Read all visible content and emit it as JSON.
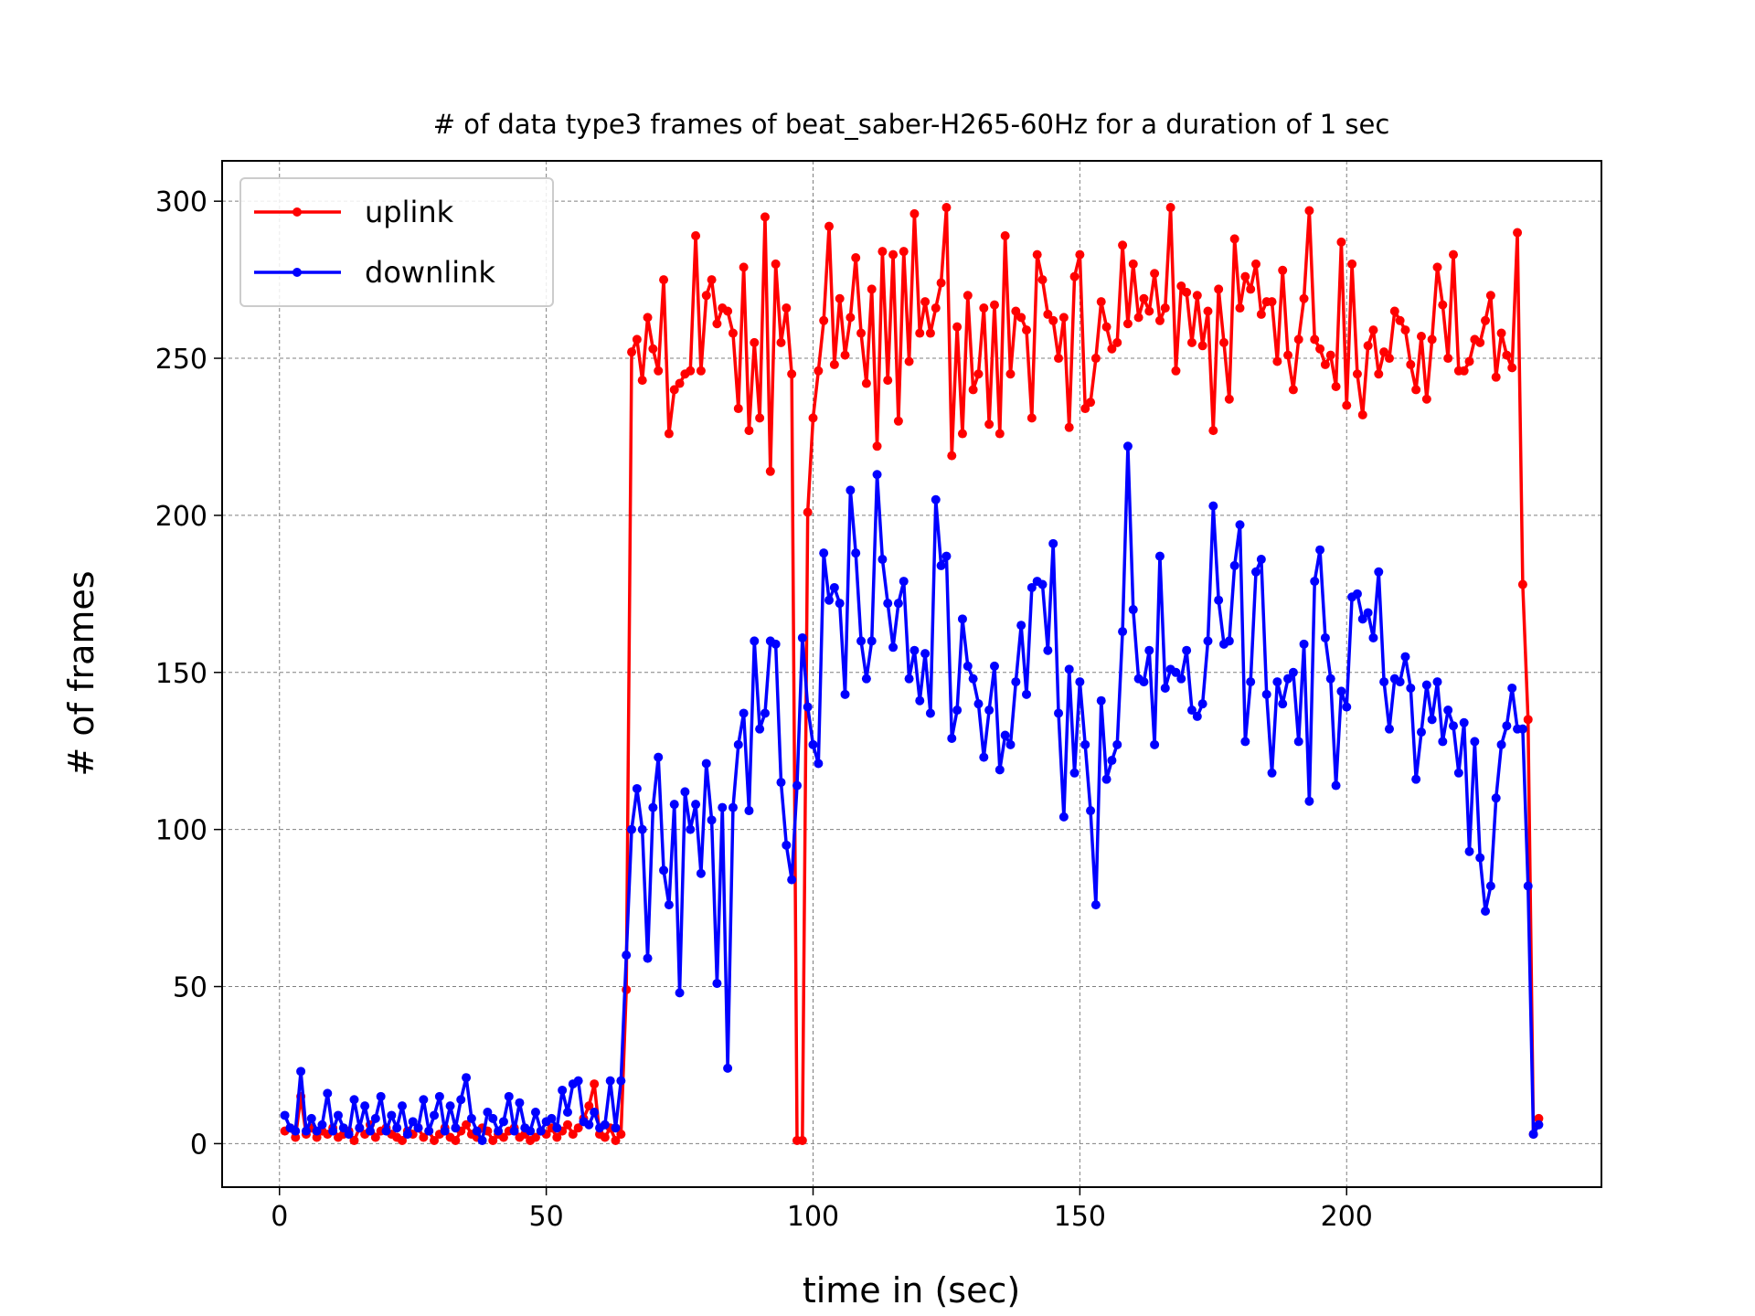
{
  "chart_data": {
    "type": "line",
    "title": "# of data type3 frames of beat_saber-H265-60Hz for a duration of 1 sec",
    "xlabel": "time in (sec)",
    "ylabel": "# of frames",
    "x": [
      1,
      2,
      3,
      4,
      5,
      6,
      7,
      8,
      9,
      10,
      11,
      12,
      13,
      14,
      15,
      16,
      17,
      18,
      19,
      20,
      21,
      22,
      23,
      24,
      25,
      26,
      27,
      28,
      29,
      30,
      31,
      32,
      33,
      34,
      35,
      36,
      37,
      38,
      39,
      40,
      41,
      42,
      43,
      44,
      45,
      46,
      47,
      48,
      49,
      50,
      51,
      52,
      53,
      54,
      55,
      56,
      57,
      58,
      59,
      60,
      61,
      62,
      63,
      64,
      65,
      66,
      67,
      68,
      69,
      70,
      71,
      72,
      73,
      74,
      75,
      76,
      77,
      78,
      79,
      80,
      81,
      82,
      83,
      84,
      85,
      86,
      87,
      88,
      89,
      90,
      91,
      92,
      93,
      94,
      95,
      96,
      97,
      98,
      99,
      100,
      101,
      102,
      103,
      104,
      105,
      106,
      107,
      108,
      109,
      110,
      111,
      112,
      113,
      114,
      115,
      116,
      117,
      118,
      119,
      120,
      121,
      122,
      123,
      124,
      125,
      126,
      127,
      128,
      129,
      130,
      131,
      132,
      133,
      134,
      135,
      136,
      137,
      138,
      139,
      140,
      141,
      142,
      143,
      144,
      145,
      146,
      147,
      148,
      149,
      150,
      151,
      152,
      153,
      154,
      155,
      156,
      157,
      158,
      159,
      160,
      161,
      162,
      163,
      164,
      165,
      166,
      167,
      168,
      169,
      170,
      171,
      172,
      173,
      174,
      175,
      176,
      177,
      178,
      179,
      180,
      181,
      182,
      183,
      184,
      185,
      186,
      187,
      188,
      189,
      190,
      191,
      192,
      193,
      194,
      195,
      196,
      197,
      198,
      199,
      200,
      201,
      202,
      203,
      204,
      205,
      206,
      207,
      208,
      209,
      210,
      211,
      212,
      213,
      214,
      215,
      216,
      217,
      218,
      219,
      220,
      221,
      222,
      223,
      224,
      225,
      226,
      227,
      228,
      229,
      230,
      231,
      232,
      233,
      234,
      235,
      236
    ],
    "series": [
      {
        "name": "uplink",
        "color": "#ff0000",
        "values": [
          4,
          5,
          2,
          15,
          3,
          5,
          2,
          4,
          3,
          5,
          2,
          3,
          4,
          1,
          5,
          3,
          6,
          2,
          4,
          5,
          3,
          2,
          1,
          4,
          3,
          5,
          2,
          4,
          1,
          3,
          5,
          2,
          1,
          4,
          6,
          3,
          2,
          5,
          4,
          1,
          3,
          2,
          4,
          5,
          2,
          3,
          1,
          2,
          4,
          3,
          5,
          2,
          4,
          6,
          3,
          5,
          8,
          12,
          19,
          3,
          2,
          5,
          1,
          3,
          49,
          252,
          256,
          243,
          263,
          253,
          246,
          275,
          226,
          240,
          242,
          245,
          246,
          289,
          246,
          270,
          275,
          261,
          266,
          265,
          258,
          234,
          279,
          227,
          255,
          231,
          295,
          214,
          280,
          255,
          266,
          245,
          1,
          1,
          201,
          231,
          246,
          262,
          292,
          248,
          269,
          251,
          263,
          282,
          258,
          242,
          272,
          222,
          284,
          243,
          283,
          230,
          284,
          249,
          296,
          258,
          268,
          258,
          266,
          274,
          298,
          219,
          260,
          226,
          270,
          240,
          245,
          266,
          229,
          267,
          226,
          289,
          245,
          265,
          263,
          259,
          231,
          283,
          275,
          264,
          262,
          250,
          263,
          228,
          276,
          283,
          234,
          236,
          250,
          268,
          260,
          253,
          255,
          286,
          261,
          280,
          263,
          269,
          265,
          277,
          262,
          266,
          298,
          246,
          273,
          271,
          255,
          270,
          254,
          265,
          227,
          272,
          255,
          237,
          288,
          266,
          276,
          272,
          280,
          264,
          268,
          268,
          249,
          278,
          251,
          240,
          256,
          269,
          297,
          256,
          253,
          248,
          251,
          241,
          287,
          235,
          280,
          245,
          232,
          254,
          259,
          245,
          252,
          250,
          265,
          262,
          259,
          248,
          240,
          257,
          237,
          256,
          279,
          267,
          250,
          283,
          246,
          246,
          249,
          256,
          255,
          262,
          270,
          244,
          258,
          251,
          247,
          290,
          178,
          135,
          3,
          8
        ]
      },
      {
        "name": "downlink",
        "color": "#0000ff",
        "values": [
          9,
          5,
          4,
          23,
          4,
          8,
          4,
          6,
          16,
          4,
          9,
          5,
          3,
          14,
          5,
          12,
          4,
          8,
          15,
          4,
          9,
          5,
          12,
          3,
          7,
          5,
          14,
          4,
          9,
          15,
          4,
          12,
          5,
          14,
          21,
          8,
          4,
          1,
          10,
          8,
          4,
          7,
          15,
          4,
          13,
          5,
          4,
          10,
          4,
          7,
          8,
          5,
          17,
          10,
          19,
          20,
          7,
          6,
          10,
          5,
          6,
          20,
          5,
          20,
          60,
          100,
          113,
          100,
          59,
          107,
          123,
          87,
          76,
          108,
          48,
          112,
          100,
          108,
          86,
          121,
          103,
          51,
          107,
          24,
          107,
          127,
          137,
          106,
          160,
          132,
          137,
          160,
          159,
          115,
          95,
          84,
          114,
          161,
          139,
          127,
          121,
          188,
          173,
          177,
          172,
          143,
          208,
          188,
          160,
          148,
          160,
          213,
          186,
          172,
          158,
          172,
          179,
          148,
          157,
          141,
          156,
          137,
          205,
          184,
          187,
          129,
          138,
          167,
          152,
          148,
          140,
          123,
          138,
          152,
          119,
          130,
          127,
          147,
          165,
          143,
          177,
          179,
          178,
          157,
          191,
          137,
          104,
          151,
          118,
          147,
          127,
          106,
          76,
          141,
          116,
          122,
          127,
          163,
          222,
          170,
          148,
          147,
          157,
          127,
          187,
          145,
          151,
          150,
          148,
          157,
          138,
          136,
          140,
          160,
          203,
          173,
          159,
          160,
          184,
          197,
          128,
          147,
          182,
          186,
          143,
          118,
          147,
          140,
          148,
          150,
          128,
          159,
          109,
          179,
          189,
          161,
          148,
          114,
          144,
          139,
          174,
          175,
          167,
          169,
          161,
          182,
          147,
          132,
          148,
          147,
          155,
          145,
          116,
          131,
          146,
          135,
          147,
          128,
          138,
          133,
          118,
          134,
          93,
          128,
          91,
          74,
          82,
          110,
          127,
          133,
          145,
          132,
          132,
          82,
          3,
          6
        ]
      }
    ],
    "xlim": [
      -10.75,
      247.75
    ],
    "ylim": [
      -13.85,
      312.85
    ],
    "xticks": [
      0,
      50,
      100,
      150,
      200
    ],
    "yticks": [
      0,
      50,
      100,
      150,
      200,
      250,
      300
    ],
    "grid": true,
    "legend": "upper left"
  }
}
